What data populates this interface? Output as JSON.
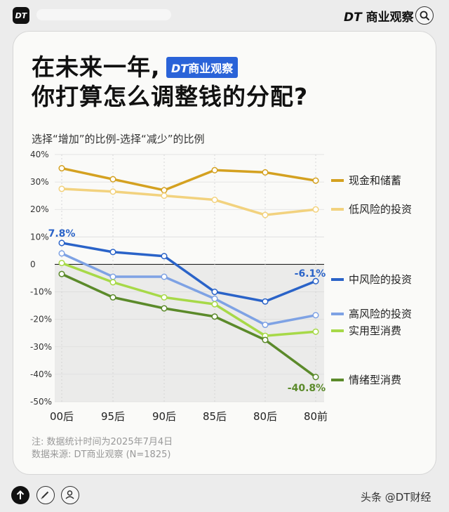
{
  "header": {
    "logo_text": "DT",
    "brand_prefix": "DT",
    "brand_name": "商业观察"
  },
  "card": {
    "title_line1": "在未来一年,",
    "title_line2": "你打算怎么调整钱的分配?",
    "badge_prefix": "DT",
    "badge_name": "商业观察",
    "subtitle": "选择“增加”的比例-选择“减少”的比例",
    "note": "注: 数据统计时间为2025年7月4日",
    "source": "数据来源: DT商业观察 (N=1825)"
  },
  "footer": {
    "source_text": "头条 @DT财经"
  },
  "chart_data": {
    "type": "line",
    "categories": [
      "00后",
      "95后",
      "90后",
      "85后",
      "80后",
      "80前"
    ],
    "ylim": [
      -50,
      40
    ],
    "yticks": [
      "40%",
      "30%",
      "20%",
      "10%",
      "0",
      "-10%",
      "-20%",
      "-30%",
      "-40%",
      "-50%"
    ],
    "ytick_values": [
      40,
      30,
      20,
      10,
      0,
      -10,
      -20,
      -30,
      -40,
      -50
    ],
    "series": [
      {
        "name": "现金和储蓄",
        "color": "#d4a120",
        "values": [
          35,
          31,
          27,
          34.3,
          33.5,
          30.5
        ]
      },
      {
        "name": "低风险的投资",
        "color": "#f2d27e",
        "values": [
          27.5,
          26.5,
          25,
          23.5,
          18,
          20
        ]
      },
      {
        "name": "中风险的投资",
        "color": "#2a63c8",
        "values": [
          7.8,
          4.5,
          3,
          -10,
          -13.5,
          -6.1
        ]
      },
      {
        "name": "高风险的投资",
        "color": "#7ea2e4",
        "values": [
          4,
          -4.5,
          -4.5,
          -12.5,
          -22,
          -18.5
        ]
      },
      {
        "name": "实用型消费",
        "color": "#a7d948",
        "values": [
          0.5,
          -6.5,
          -12,
          -14.5,
          -26,
          -24.5
        ]
      },
      {
        "name": "情绪型消费",
        "color": "#5b8a2a",
        "values": [
          -3.5,
          -12,
          -16,
          -19,
          -27.5,
          -41
        ]
      }
    ],
    "data_labels": [
      {
        "text": "7.8%",
        "color": "#2a63c8"
      },
      {
        "text": "-6.1%",
        "color": "#2a63c8"
      },
      {
        "text": "-40.8%",
        "color": "#5b8a2a"
      }
    ]
  }
}
